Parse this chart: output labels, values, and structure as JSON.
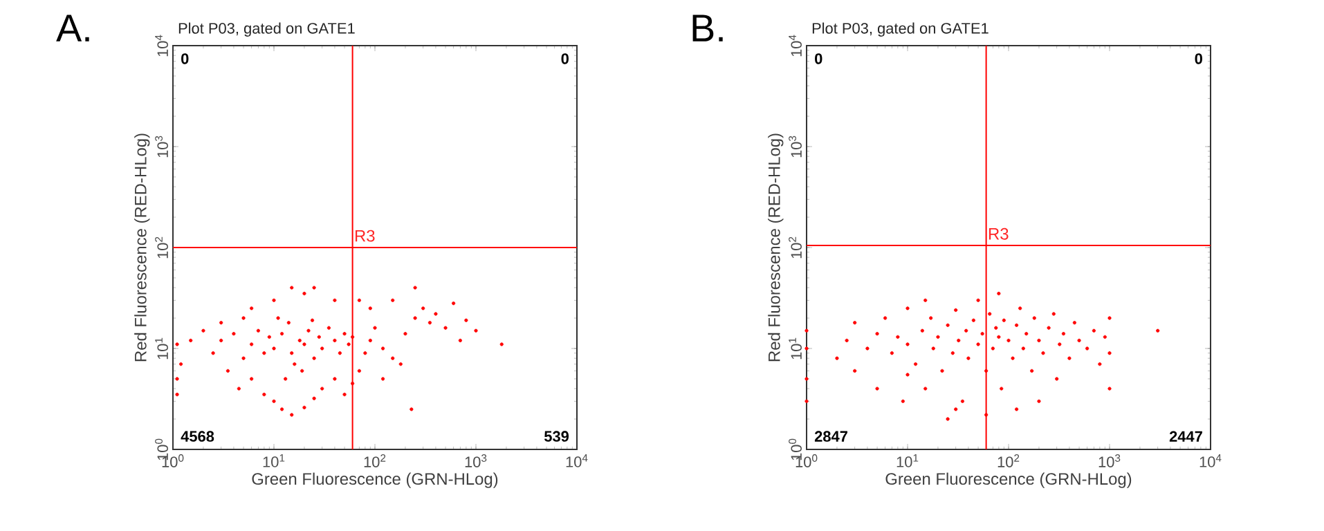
{
  "chart_data": [
    {
      "type": "scatter",
      "title": "Plot P03, gated on GATE1",
      "xlabel": "Green Fluorescence (GRN-HLog)",
      "ylabel": "Red Fluorescence (RED-HLog)",
      "log": "xy",
      "xlim": [
        1,
        10000
      ],
      "ylim": [
        1,
        10000
      ],
      "grid": false,
      "xticks": [
        {
          "value": 1,
          "label": "10$^{0}$"
        },
        {
          "value": 10,
          "label": "10$^{1}$"
        },
        {
          "value": 100,
          "label": "10$^{2}$"
        },
        {
          "value": 1000,
          "label": "10$^{3}$"
        },
        {
          "value": 10000,
          "label": "10$^{4}$"
        }
      ],
      "yticks": [
        {
          "value": 1,
          "label": "10$^{0}$"
        },
        {
          "value": 10,
          "label": "10$^{1}$"
        },
        {
          "value": 100,
          "label": "10$^{2}$"
        },
        {
          "value": 1000,
          "label": "10$^{3}$"
        },
        {
          "value": 10000,
          "label": "10$^{4}$"
        }
      ],
      "ref_lines": [
        {
          "axis": "x",
          "value": 60,
          "color": "#ff0000"
        },
        {
          "axis": "y",
          "value": 100,
          "color": "#ff0000"
        }
      ],
      "annotations": [
        "A.",
        "0",
        "0",
        "4568",
        "539",
        {
          "text": "R3",
          "x": 60,
          "y": 110
        }
      ],
      "series": [
        {
          "color": "#ff0000",
          "x": [
            10,
            12,
            15,
            18,
            20,
            22,
            25,
            14,
            16,
            9,
            11,
            13,
            19,
            24,
            28,
            30,
            35,
            40,
            45,
            50,
            55,
            60,
            8,
            7,
            6,
            5,
            4,
            3,
            2.5,
            1.5,
            1.1,
            1.2,
            3.5,
            4.5,
            6,
            8,
            10,
            12,
            15,
            20,
            25,
            30,
            40,
            50,
            60,
            70,
            80,
            90,
            100,
            120,
            150,
            200,
            250,
            300,
            350,
            400,
            500,
            600,
            700,
            800,
            1000,
            1800,
            90,
            70,
            40,
            20,
            15,
            10,
            6,
            5,
            3,
            2,
            250,
            150,
            120,
            230,
            180,
            1.1,
            1.1,
            25
          ],
          "values": [
            10,
            14,
            9,
            12,
            11,
            15,
            8,
            18,
            7,
            13,
            20,
            5,
            6,
            19,
            13,
            10,
            16,
            12,
            9,
            14,
            11,
            13,
            9,
            15,
            11,
            8,
            14,
            12,
            9,
            12,
            11,
            7,
            6,
            4,
            5,
            3.5,
            3,
            2.5,
            2.2,
            2.6,
            3.2,
            4,
            5,
            3.5,
            4.5,
            6,
            9,
            12,
            16,
            10,
            8,
            14,
            20,
            25,
            18,
            22,
            16,
            28,
            12,
            19,
            15,
            11,
            25,
            30,
            30,
            35,
            40,
            30,
            25,
            20,
            18,
            15,
            40,
            30,
            5,
            2.5,
            7,
            5,
            3.5,
            40
          ]
        }
      ]
    },
    {
      "type": "scatter",
      "title": "Plot P03, gated on GATE1",
      "xlabel": "Green Fluorescence (GRN-HLog)",
      "ylabel": "Red Fluorescence (RED-HLog)",
      "log": "xy",
      "xlim": [
        1,
        10000
      ],
      "ylim": [
        1,
        10000
      ],
      "grid": false,
      "xticks": [
        {
          "value": 1,
          "label": "10$^{0}$"
        },
        {
          "value": 10,
          "label": "10$^{1}$"
        },
        {
          "value": 100,
          "label": "10$^{2}$"
        },
        {
          "value": 1000,
          "label": "10$^{3}$"
        },
        {
          "value": 10000,
          "label": "10$^{4}$"
        }
      ],
      "yticks": [
        {
          "value": 1,
          "label": "10$^{0}$"
        },
        {
          "value": 10,
          "label": "10$^{1}$"
        },
        {
          "value": 100,
          "label": "10$^{2}$"
        },
        {
          "value": 1000,
          "label": "10$^{3}$"
        },
        {
          "value": 10000,
          "label": "10$^{4}$"
        }
      ],
      "ref_lines": [
        {
          "axis": "x",
          "value": 60,
          "color": "#ff0000"
        },
        {
          "axis": "y",
          "value": 105,
          "color": "#ff0000"
        }
      ],
      "annotations": [
        "B.",
        "0",
        "0",
        "2847",
        "2447",
        {
          "text": "R3",
          "x": 60,
          "y": 115
        }
      ],
      "series": [
        {
          "color": "#ff0000",
          "x": [
            1,
            1,
            1,
            1,
            2,
            2.5,
            3,
            3,
            4,
            5,
            5,
            6,
            7,
            8,
            9,
            10,
            10,
            12,
            14,
            15,
            17,
            18,
            20,
            22,
            25,
            28,
            30,
            32,
            35,
            38,
            40,
            45,
            50,
            55,
            60,
            65,
            70,
            75,
            80,
            85,
            90,
            100,
            110,
            120,
            130,
            140,
            150,
            170,
            180,
            200,
            220,
            250,
            280,
            300,
            320,
            350,
            400,
            450,
            500,
            600,
            700,
            800,
            900,
            1000,
            1000,
            1000,
            3000,
            50,
            80,
            30,
            60,
            120,
            200,
            15,
            25,
            10
          ],
          "values": [
            10,
            5,
            15,
            3,
            8,
            12,
            6,
            18,
            10,
            14,
            4,
            20,
            9,
            13,
            3,
            11,
            25,
            7,
            15,
            4,
            20,
            10,
            13,
            6,
            17,
            9,
            24,
            12,
            3,
            15,
            8,
            19,
            11,
            14,
            6,
            22,
            10,
            16,
            13,
            4,
            19,
            12,
            8,
            17,
            25,
            10,
            14,
            6,
            20,
            12,
            9,
            16,
            22,
            5,
            11,
            14,
            8,
            18,
            12,
            10,
            15,
            7,
            13,
            9,
            20,
            4,
            15,
            30,
            35,
            2.5,
            2.2,
            2.5,
            3,
            30,
            2,
            5.5
          ]
        }
      ]
    }
  ]
}
